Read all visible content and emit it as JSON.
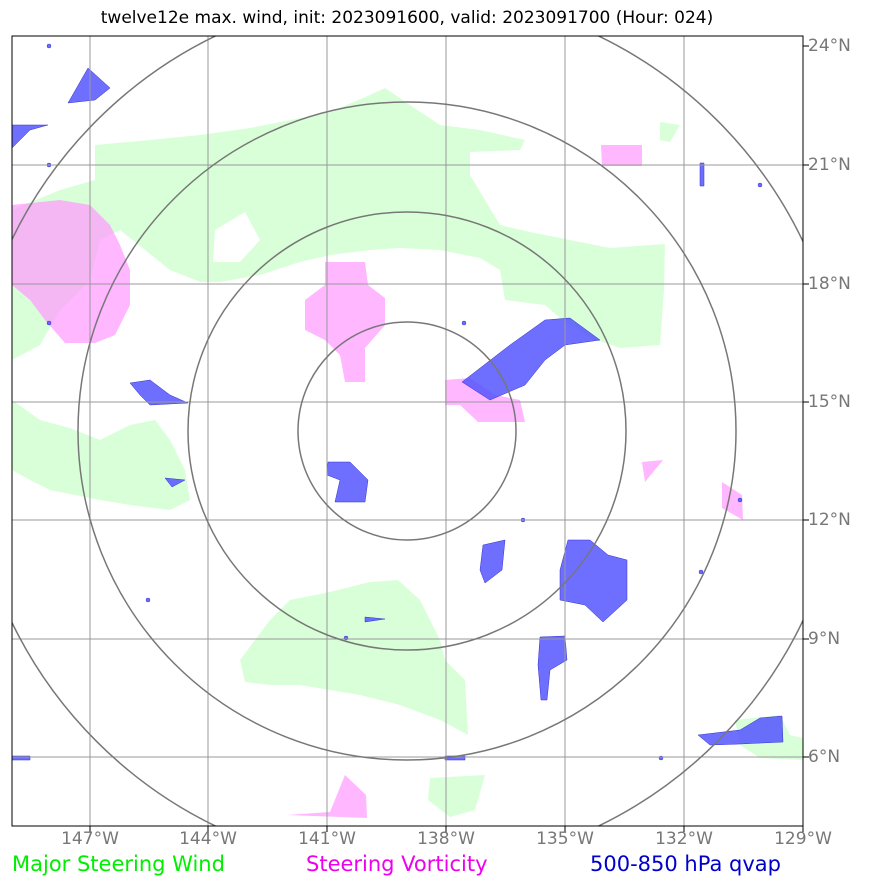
{
  "title": "twelve12e max. wind, init: 2023091600, valid: 2023091700 (Hour: 024)",
  "lon_labels": [
    "147°W",
    "144°W",
    "141°W",
    "138°W",
    "135°W",
    "132°W",
    "129°W"
  ],
  "lat_labels": [
    "24°N",
    "21°N",
    "18°N",
    "15°N",
    "12°N",
    "9°N",
    "6°N"
  ],
  "legend": {
    "wind": "Major Steering Wind",
    "vorticity": "Steering Vorticity",
    "qvap": "500-850 hPa qvap"
  },
  "colors": {
    "wind_fill": "#ccffcc",
    "vorticity_fill": "#ff99ff",
    "qvap_fill": "#3333ff",
    "grid": "#999999",
    "rings": "#777777"
  }
}
